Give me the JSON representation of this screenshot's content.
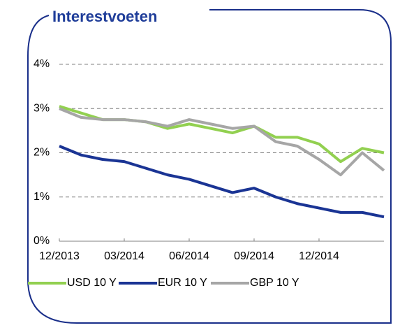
{
  "chart_data": {
    "type": "line",
    "title": "Interestvoeten",
    "categories": [
      "12/2013",
      null,
      null,
      "03/2014",
      null,
      null,
      "06/2014",
      null,
      null,
      "09/2014",
      null,
      null,
      "12/2014",
      null,
      null,
      null
    ],
    "series": [
      {
        "name": "USD 10 Y",
        "color": "#92d050",
        "values": [
          3.05,
          2.9,
          2.75,
          2.75,
          2.7,
          2.55,
          2.65,
          2.55,
          2.45,
          2.6,
          2.35,
          2.35,
          2.2,
          1.8,
          2.1,
          2.0
        ]
      },
      {
        "name": "EUR 10 Y",
        "color": "#1a3494",
        "values": [
          2.15,
          1.95,
          1.85,
          1.8,
          1.65,
          1.5,
          1.4,
          1.25,
          1.1,
          1.2,
          1.0,
          0.85,
          0.75,
          0.65,
          0.65,
          0.55
        ]
      },
      {
        "name": "GBP 10 Y",
        "color": "#a6a6a6",
        "values": [
          3.0,
          2.8,
          2.75,
          2.75,
          2.7,
          2.6,
          2.75,
          2.65,
          2.55,
          2.6,
          2.25,
          2.15,
          1.85,
          1.5,
          2.0,
          1.6
        ]
      }
    ],
    "ylim": [
      0,
      4
    ],
    "yticks": [
      {
        "value": 0,
        "label": "0%"
      },
      {
        "value": 1,
        "label": "1%"
      },
      {
        "value": 2,
        "label": "2%"
      },
      {
        "value": 3,
        "label": "3%"
      },
      {
        "value": 4,
        "label": "4%"
      }
    ],
    "grid": true
  }
}
